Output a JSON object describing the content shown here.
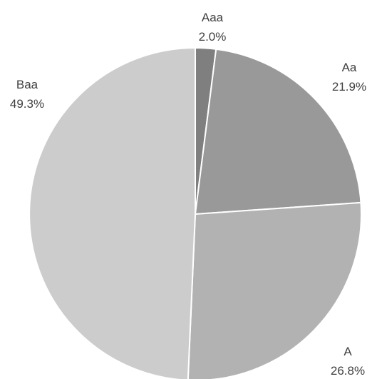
{
  "chart_data": {
    "type": "pie",
    "title": "",
    "legend": "none",
    "slices": [
      {
        "label": "Aaa",
        "value": 2.0,
        "percent_label": "2.0%",
        "color": "#7f7f7f"
      },
      {
        "label": "Aa",
        "value": 21.9,
        "percent_label": "21.9%",
        "color": "#999999"
      },
      {
        "label": "A",
        "value": 26.8,
        "percent_label": "26.8%",
        "color": "#b2b2b2"
      },
      {
        "label": "Baa",
        "value": 49.3,
        "percent_label": "49.3%",
        "color": "#cccccc"
      }
    ]
  }
}
